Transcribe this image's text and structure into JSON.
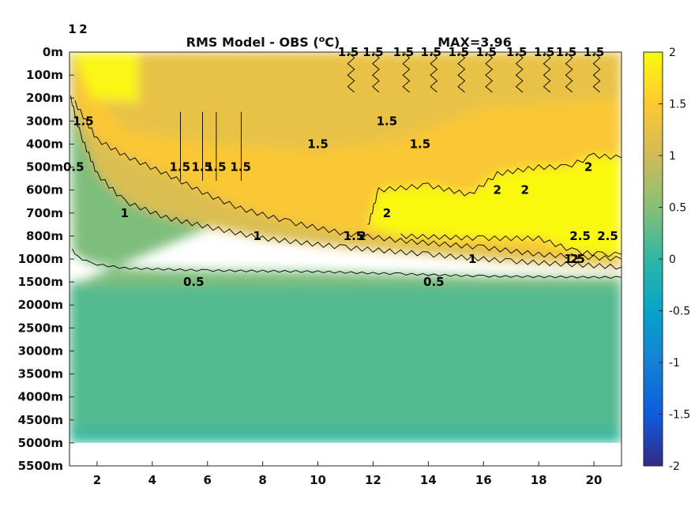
{
  "chart_data": {
    "type": "heatmap",
    "title": "RMS Model - OBS (",
    "title_superscript": "o",
    "title_suffix": "C)",
    "annotation": "MAX=3.96",
    "x_ticks": [
      "2",
      "4",
      "6",
      "8",
      "10",
      "12",
      "14",
      "16",
      "18",
      "20"
    ],
    "x_tick_values": [
      2,
      4,
      6,
      8,
      10,
      12,
      14,
      16,
      18,
      20
    ],
    "xlim": [
      1,
      21
    ],
    "y_ticks": [
      "0m",
      "100m",
      "200m",
      "300m",
      "400m",
      "500m",
      "600m",
      "700m",
      "800m",
      "1000m",
      "1500m",
      "2000m",
      "2500m",
      "3000m",
      "3500m",
      "4000m",
      "4500m",
      "5000m",
      "5500m"
    ],
    "y_axis": "depth (reversed, non-uniform tick spacing)",
    "colorbar": {
      "range": [
        -2,
        2
      ],
      "ticks": [
        "2",
        "1.5",
        "1",
        "0.5",
        "0",
        "-0.5",
        "-1",
        "-1.5",
        "-2"
      ],
      "tick_values": [
        2,
        1.5,
        1,
        0.5,
        0,
        -0.5,
        -1,
        -1.5,
        -2
      ],
      "colormap": "parula",
      "stops": [
        "#352a87",
        "#0f5cdd",
        "#1481d6",
        "#06a4ca",
        "#2eb7a4",
        "#87bf77",
        "#d1bb59",
        "#fec832",
        "#f9fb0e"
      ]
    },
    "contour_levels": [
      0.5,
      1,
      1.5,
      2,
      2.5
    ],
    "contour_labels": [
      {
        "text": "0.5",
        "x": 1.15,
        "y": "500m"
      },
      {
        "text": "1",
        "x": 1.1,
        "y": "250m"
      },
      {
        "text": "1.5",
        "x": 1.5,
        "y": "300m"
      },
      {
        "text": "2",
        "x": 1.5,
        "y": "150m"
      },
      {
        "text": "1",
        "x": 3.0,
        "y": "700m"
      },
      {
        "text": "1",
        "x": 7.8,
        "y": "800m"
      },
      {
        "text": "0.5",
        "x": 5.5,
        "y": "1500m"
      },
      {
        "text": "0.5",
        "x": 14.2,
        "y": "1500m"
      },
      {
        "text": "1",
        "x": 15.6,
        "y": "1000m"
      },
      {
        "text": "1.5",
        "x": 11.3,
        "y": "800m"
      },
      {
        "text": "1.5",
        "x": 19.3,
        "y": "1000m"
      },
      {
        "text": "2",
        "x": 11.6,
        "y": "800m"
      },
      {
        "text": "2",
        "x": 12.5,
        "y": "700m"
      },
      {
        "text": "2",
        "x": 19.3,
        "y": "1000m"
      },
      {
        "text": "2",
        "x": 16.5,
        "y": "600m"
      },
      {
        "text": "2",
        "x": 19.8,
        "y": "500m"
      },
      {
        "text": "2",
        "x": 17.5,
        "y": "600m"
      },
      {
        "text": "2.5",
        "x": 19.5,
        "y": "800m"
      },
      {
        "text": "2.5",
        "x": 20.5,
        "y": "800m"
      },
      {
        "text": "1.5",
        "x": 10.0,
        "y": "400m"
      },
      {
        "text": "1.5",
        "x": 12.5,
        "y": "300m"
      },
      {
        "text": "1.5",
        "x": 13.7,
        "y": "400m"
      },
      {
        "text": "1.5",
        "x": 5.0,
        "y": "500m"
      },
      {
        "text": "1.5",
        "x": 5.8,
        "y": "500m"
      },
      {
        "text": "1.5",
        "x": 6.3,
        "y": "500m"
      },
      {
        "text": "1.5",
        "x": 7.2,
        "y": "500m"
      },
      {
        "text": "1.5",
        "x": 11.1,
        "y": "0m"
      },
      {
        "text": "1.5",
        "x": 12.0,
        "y": "0m"
      },
      {
        "text": "1.5",
        "x": 13.1,
        "y": "0m"
      },
      {
        "text": "1.5",
        "x": 14.1,
        "y": "0m"
      },
      {
        "text": "1.5",
        "x": 15.1,
        "y": "0m"
      },
      {
        "text": "1.5",
        "x": 16.1,
        "y": "0m"
      },
      {
        "text": "1.5",
        "x": 17.2,
        "y": "0m"
      },
      {
        "text": "1.5",
        "x": 18.2,
        "y": "0m"
      },
      {
        "text": "1.5",
        "x": 19.0,
        "y": "0m"
      },
      {
        "text": "1.5",
        "x": 20.0,
        "y": "0m"
      }
    ]
  }
}
